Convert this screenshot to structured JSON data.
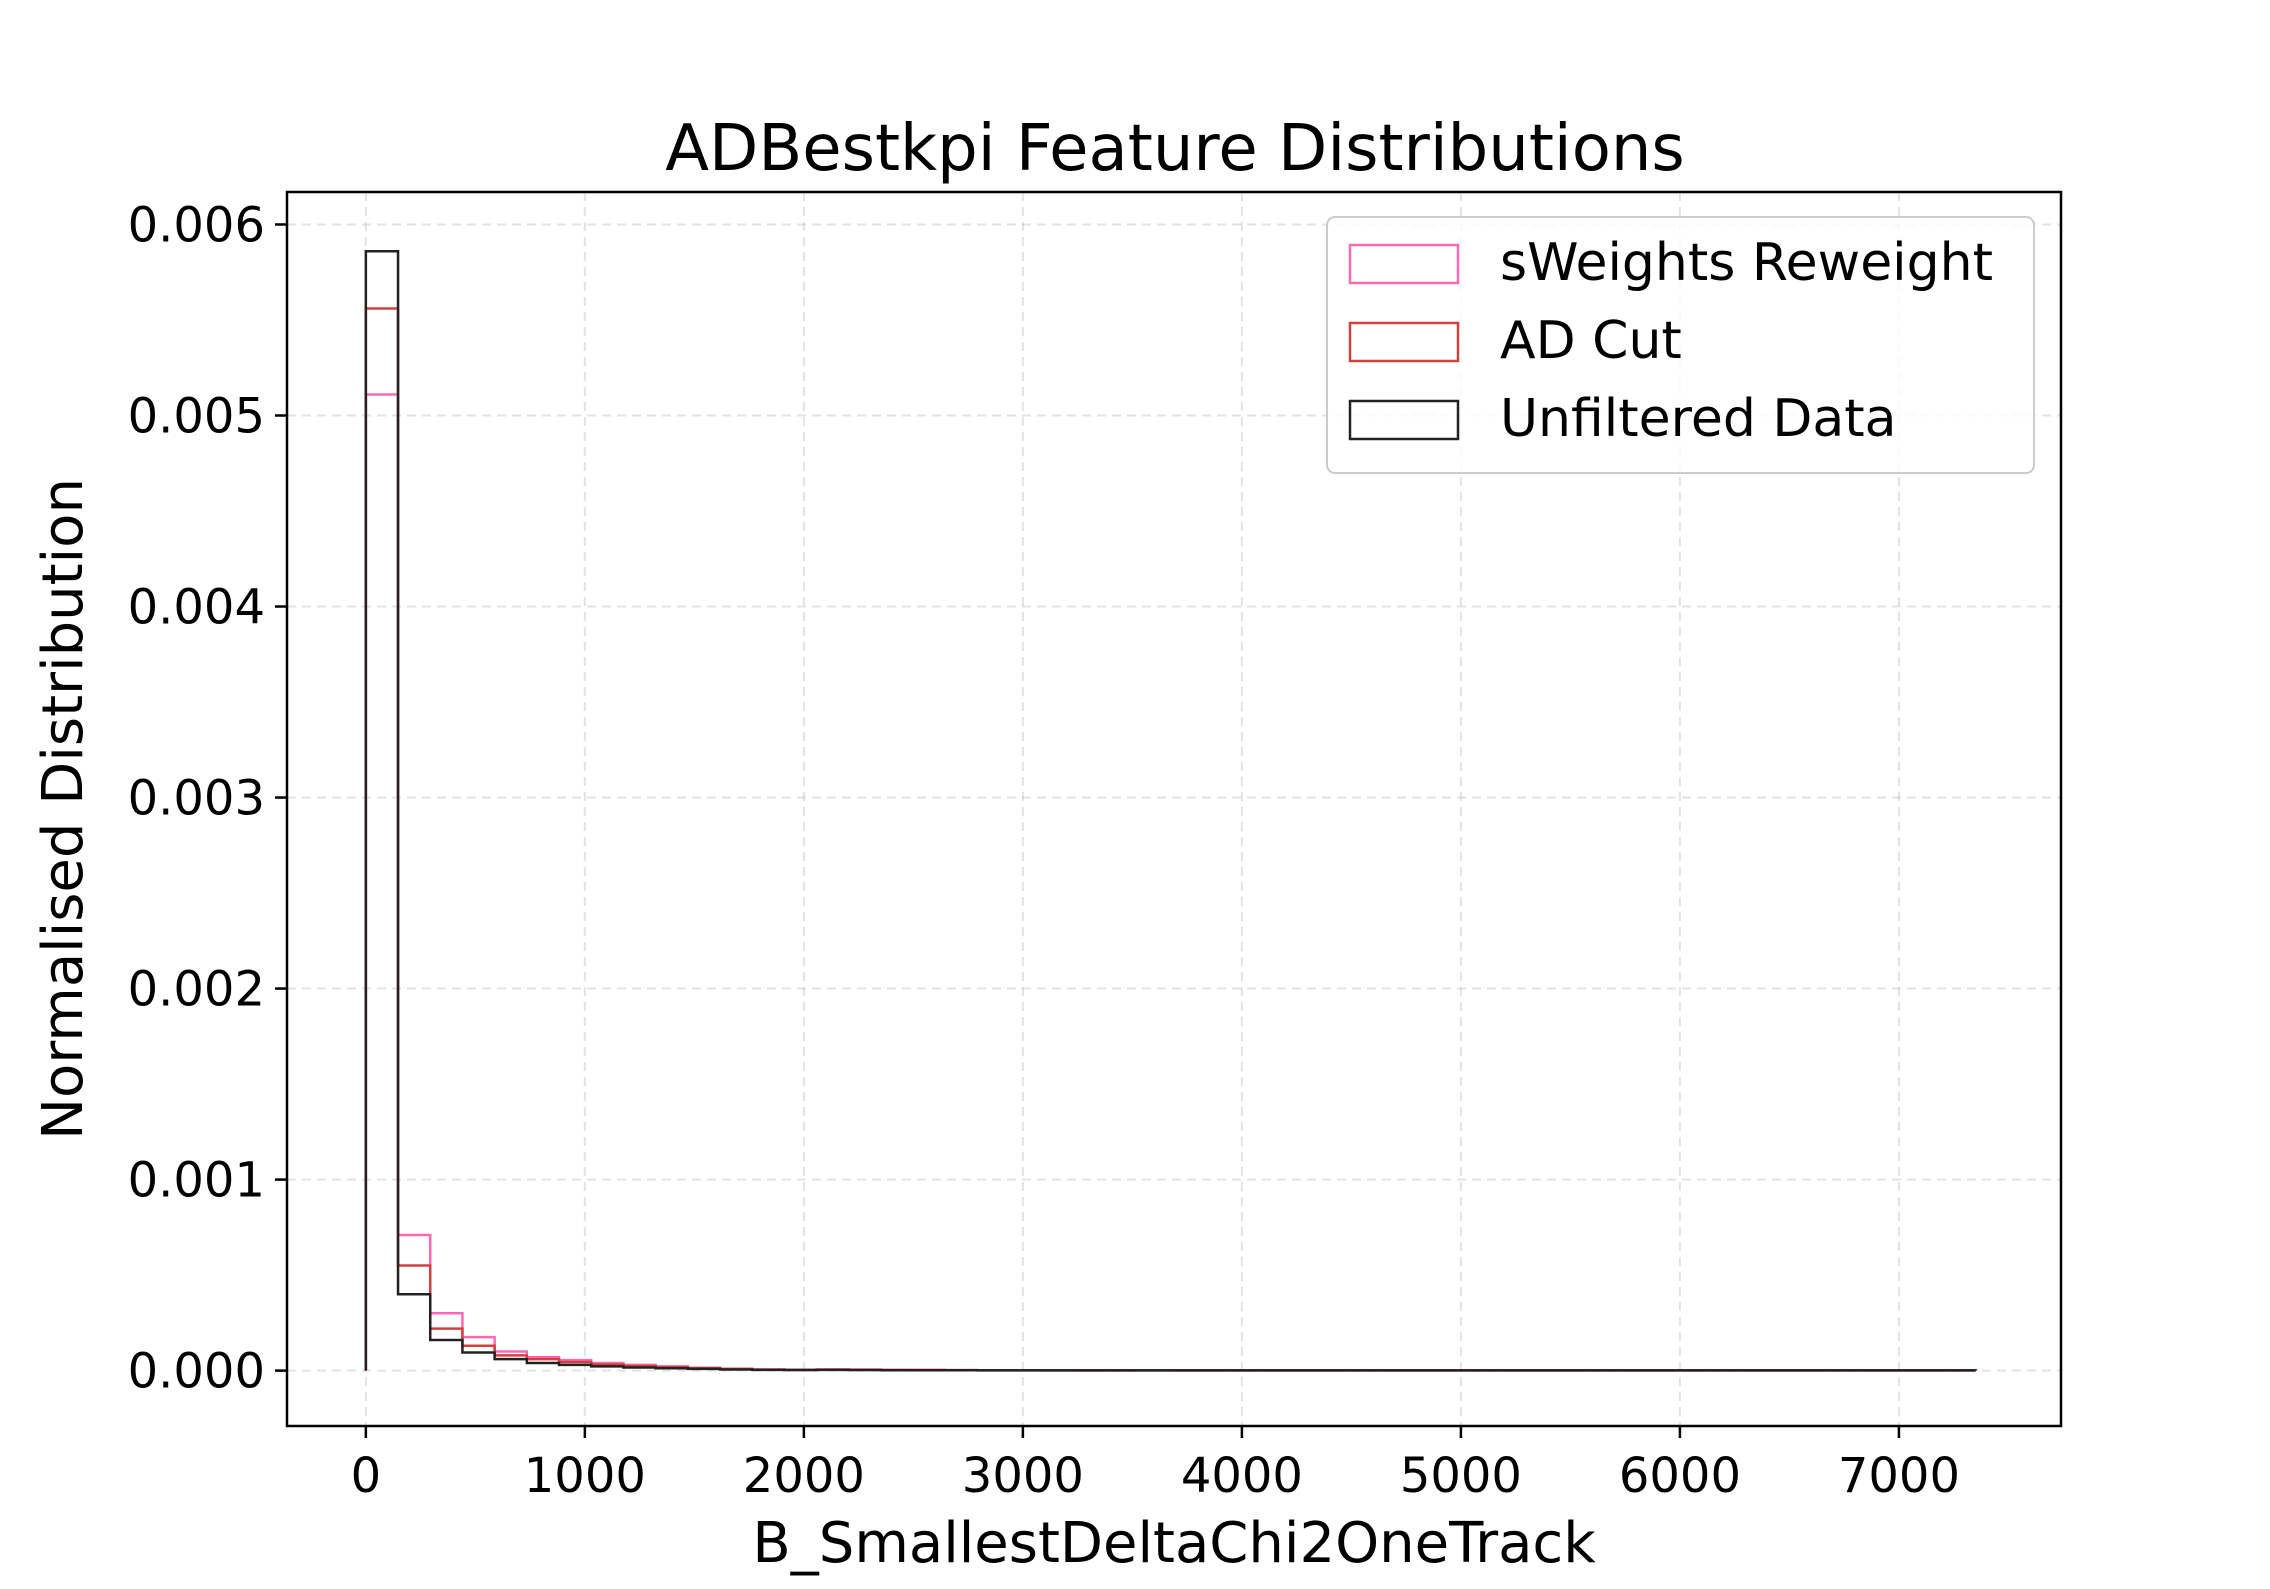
{
  "chart_data": {
    "type": "histogram-step",
    "title": "ADBestkpi Feature Distributions",
    "xlabel": "B_SmallestDeltaChi2OneTrack",
    "ylabel": "Normalised Distribution",
    "xlim": [
      -360,
      7740
    ],
    "ylim": [
      -0.00029,
      0.00617
    ],
    "xticks": [
      0,
      1000,
      2000,
      3000,
      4000,
      5000,
      6000,
      7000
    ],
    "yticks": [
      0.0,
      0.001,
      0.002,
      0.003,
      0.004,
      0.005,
      0.006
    ],
    "xtick_labels": [
      "0",
      "1000",
      "2000",
      "3000",
      "4000",
      "5000",
      "6000",
      "7000"
    ],
    "ytick_labels": [
      "0.000",
      "0.001",
      "0.002",
      "0.003",
      "0.004",
      "0.005",
      "0.006"
    ],
    "grid": true,
    "legend_position": "top-right",
    "bin_edges": [
      0,
      147,
      294,
      441,
      588,
      735,
      882,
      1029,
      1176,
      1323,
      1470,
      1617,
      1764,
      1911,
      2058,
      2205,
      2352,
      2499,
      2646,
      2793,
      2940,
      3087,
      3234,
      3381,
      3528,
      3675,
      3822,
      3969,
      4116,
      4263,
      4410,
      4557,
      4704,
      4851,
      4998,
      5145,
      5292,
      5439,
      5586,
      5733,
      5880,
      6027,
      6174,
      6321,
      6468,
      6615,
      6762,
      6909,
      7056,
      7203,
      7350
    ],
    "series": [
      {
        "name": "sWeights Reweight",
        "color": "#ff69b4",
        "values": [
          0.00511,
          0.00071,
          0.0003,
          0.000175,
          0.0001,
          7e-05,
          5.5e-05,
          4e-05,
          3e-05,
          2.2e-05,
          1.5e-05,
          1e-05,
          6e-06,
          4e-06,
          6e-06,
          5e-06,
          4e-06,
          3e-06,
          3e-06,
          2e-06,
          2e-06,
          2e-06,
          1e-06,
          1e-06,
          2e-06,
          1e-06,
          1e-06,
          1e-06,
          1e-06,
          1e-06,
          1e-06,
          1e-06,
          1e-06,
          1e-06,
          1e-06,
          1e-06,
          1e-06,
          1e-06,
          1e-06,
          1e-06,
          1e-06,
          1e-06,
          1e-06,
          1e-06,
          1e-06,
          1e-06,
          1e-06,
          1e-06,
          1e-06,
          1e-06
        ]
      },
      {
        "name": "AD Cut",
        "color": "#d04040",
        "values": [
          0.00556,
          0.00055,
          0.00022,
          0.00013,
          8e-05,
          6e-05,
          4.5e-05,
          3.2e-05,
          2.4e-05,
          1.8e-05,
          1.3e-05,
          9e-06,
          5e-06,
          4e-06,
          5e-06,
          4e-06,
          3e-06,
          3e-06,
          2e-06,
          2e-06,
          2e-06,
          1e-06,
          1e-06,
          1e-06,
          1e-06,
          1e-06,
          1e-06,
          1e-06,
          1e-06,
          1e-06,
          1e-06,
          1e-06,
          1e-06,
          1e-06,
          1e-06,
          1e-06,
          1e-06,
          1e-06,
          1e-06,
          1e-06,
          1e-06,
          1e-06,
          1e-06,
          1e-06,
          1e-06,
          1e-06,
          1e-06,
          1e-06,
          1e-06,
          1e-06
        ]
      },
      {
        "name": "Unfiltered Data",
        "color": "#222222",
        "values": [
          0.00586,
          0.0004,
          0.00016,
          9.5e-05,
          6e-05,
          4e-05,
          3e-05,
          2.2e-05,
          1.6e-05,
          1.2e-05,
          9e-06,
          6e-06,
          4e-06,
          3e-06,
          4e-06,
          3e-06,
          2e-06,
          2e-06,
          2e-06,
          1e-06,
          1e-06,
          1e-06,
          1e-06,
          1e-06,
          1e-06,
          1e-06,
          1e-06,
          1e-06,
          1e-06,
          1e-06,
          1e-06,
          1e-06,
          1e-06,
          1e-06,
          1e-06,
          1e-06,
          1e-06,
          1e-06,
          1e-06,
          1e-06,
          1e-06,
          1e-06,
          1e-06,
          1e-06,
          1e-06,
          1e-06,
          1e-06,
          1e-06,
          1e-06,
          1e-06
        ]
      }
    ]
  }
}
